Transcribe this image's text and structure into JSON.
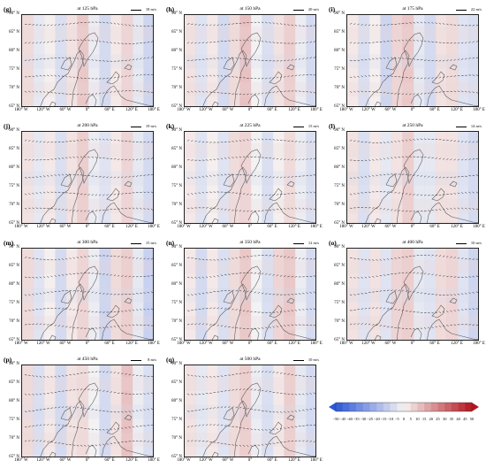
{
  "panels": [
    {
      "label": "(g)",
      "title": "at 125 hPa",
      "scale": "18 m/s",
      "stripes": [
        8,
        -6,
        2,
        -10,
        6,
        14,
        -4,
        -12,
        4,
        10,
        -6,
        -14
      ]
    },
    {
      "label": "(h)",
      "title": "at 150 hPa",
      "scale": "20 m/s",
      "stripes": [
        6,
        -8,
        4,
        -12,
        8,
        16,
        -2,
        -10,
        6,
        12,
        -4,
        -12
      ]
    },
    {
      "label": "(i)",
      "title": "at 175 hPa",
      "scale": "22 m/s",
      "stripes": [
        4,
        -10,
        2,
        -14,
        10,
        14,
        -6,
        -12,
        6,
        8,
        -8,
        -10
      ]
    },
    {
      "label": "(j)",
      "title": "at 200 hPa",
      "scale": "19 m/s",
      "stripes": [
        6,
        -6,
        4,
        -10,
        6,
        12,
        -4,
        -8,
        4,
        10,
        -6,
        -12
      ]
    },
    {
      "label": "(k)",
      "title": "at 225 hPa",
      "scale": "15 m/s",
      "stripes": [
        4,
        -8,
        2,
        -8,
        8,
        10,
        -2,
        -10,
        2,
        8,
        -4,
        -10
      ]
    },
    {
      "label": "(l)",
      "title": "at 250 hPa",
      "scale": "14 m/s",
      "stripes": [
        6,
        -10,
        4,
        -6,
        6,
        12,
        -6,
        -6,
        6,
        6,
        -8,
        -12
      ]
    },
    {
      "label": "(m)",
      "title": "at 300 hPa",
      "scale": "15 m/s",
      "stripes": [
        8,
        -8,
        2,
        -12,
        4,
        10,
        -4,
        -14,
        8,
        12,
        -6,
        -16
      ]
    },
    {
      "label": "(n)",
      "title": "at 350 hPa",
      "scale": "12 m/s",
      "stripes": [
        4,
        -12,
        4,
        -10,
        8,
        14,
        -2,
        -10,
        10,
        14,
        -4,
        -12
      ]
    },
    {
      "label": "(o)",
      "title": "at 400 hPa",
      "scale": "10 m/s",
      "stripes": [
        6,
        -8,
        6,
        -8,
        10,
        12,
        -6,
        -8,
        8,
        10,
        -8,
        -14
      ]
    },
    {
      "label": "(p)",
      "title": "at 450 hPa",
      "scale": "8 m/s",
      "stripes": [
        8,
        -10,
        4,
        -12,
        6,
        8,
        -2,
        -12,
        6,
        16,
        -4,
        -10
      ]
    },
    {
      "label": "(q)",
      "title": "at 500 hPa",
      "scale": "10 m/s",
      "stripes": [
        6,
        -6,
        4,
        -8,
        8,
        12,
        -4,
        -10,
        4,
        12,
        -6,
        -12
      ]
    }
  ],
  "yticks": [
    "90° N",
    "85° N",
    "80° N",
    "75° N",
    "70° N",
    "65° N"
  ],
  "xticks": [
    "180° W",
    "120° W",
    "60° W",
    "0°",
    "60° E",
    "120° E",
    "180° E"
  ],
  "colorbar": {
    "ticks": [
      "−50",
      "−45",
      "−40",
      "−35",
      "−30",
      "−25",
      "−20",
      "−15",
      "−10",
      "−5",
      "0",
      "5",
      "10",
      "15",
      "20",
      "25",
      "30",
      "35",
      "40",
      "45",
      "50"
    ],
    "min": -50,
    "max": 50,
    "neg_color": "#2c57d9",
    "pos_color": "#b4141e",
    "mid_color": "#f5f3f1"
  }
}
